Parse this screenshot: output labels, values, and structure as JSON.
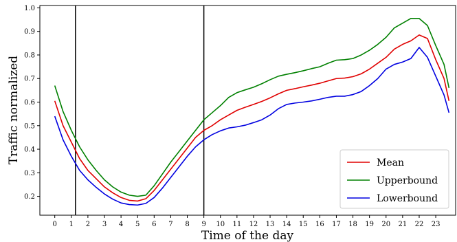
{
  "chart_data": {
    "type": "line",
    "xlabel": "Time of the day",
    "ylabel": "Traffic normalized",
    "xlim": [
      -0.9,
      24.2
    ],
    "ylim": [
      0.12,
      1.01
    ],
    "xticks": [
      0,
      1,
      2,
      3,
      4,
      5,
      6,
      7,
      8,
      9,
      10,
      11,
      12,
      13,
      14,
      15,
      16,
      17,
      18,
      19,
      20,
      21,
      22,
      23
    ],
    "yticks": [
      0.2,
      0.3,
      0.4,
      0.5,
      0.6,
      0.7,
      0.8,
      0.9,
      1.0
    ],
    "xtick_labels": [
      "0",
      "1",
      "2",
      "3",
      "4",
      "5",
      "6",
      "7",
      "8",
      "9",
      "10",
      "11",
      "12",
      "13",
      "14",
      "15",
      "16",
      "17",
      "18",
      "19",
      "20",
      "21",
      "22",
      "23"
    ],
    "ytick_labels": [
      "0.2",
      "0.3",
      "0.4",
      "0.5",
      "0.6",
      "0.7",
      "0.8",
      "0.9",
      "1.0"
    ],
    "vlines": [
      1.25,
      9.0
    ],
    "grid": false,
    "legend_position": "bottom-right",
    "series": [
      {
        "name": "Mean",
        "color": "#e00000",
        "points": [
          [
            0,
            0.605
          ],
          [
            0.5,
            0.5
          ],
          [
            1,
            0.43
          ],
          [
            1.5,
            0.36
          ],
          [
            2,
            0.31
          ],
          [
            2.5,
            0.275
          ],
          [
            3,
            0.24
          ],
          [
            3.5,
            0.215
          ],
          [
            4,
            0.195
          ],
          [
            4.5,
            0.183
          ],
          [
            5,
            0.18
          ],
          [
            5.5,
            0.19
          ],
          [
            6,
            0.225
          ],
          [
            6.5,
            0.27
          ],
          [
            7,
            0.315
          ],
          [
            7.5,
            0.36
          ],
          [
            8,
            0.405
          ],
          [
            8.5,
            0.45
          ],
          [
            9,
            0.48
          ],
          [
            9.5,
            0.5
          ],
          [
            10,
            0.525
          ],
          [
            10.5,
            0.545
          ],
          [
            11,
            0.565
          ],
          [
            11.5,
            0.578
          ],
          [
            12,
            0.59
          ],
          [
            12.5,
            0.603
          ],
          [
            13,
            0.618
          ],
          [
            13.5,
            0.635
          ],
          [
            14,
            0.65
          ],
          [
            14.5,
            0.657
          ],
          [
            15,
            0.665
          ],
          [
            15.5,
            0.672
          ],
          [
            16,
            0.68
          ],
          [
            16.5,
            0.69
          ],
          [
            17,
            0.7
          ],
          [
            17.5,
            0.702
          ],
          [
            18,
            0.708
          ],
          [
            18.5,
            0.72
          ],
          [
            19,
            0.74
          ],
          [
            19.5,
            0.765
          ],
          [
            20,
            0.79
          ],
          [
            20.5,
            0.825
          ],
          [
            21,
            0.845
          ],
          [
            21.5,
            0.86
          ],
          [
            22,
            0.885
          ],
          [
            22.5,
            0.87
          ],
          [
            23,
            0.78
          ],
          [
            23.5,
            0.7
          ],
          [
            23.8,
            0.605
          ]
        ]
      },
      {
        "name": "Upperbound",
        "color": "#008000",
        "points": [
          [
            0,
            0.67
          ],
          [
            0.5,
            0.56
          ],
          [
            1,
            0.48
          ],
          [
            1.5,
            0.41
          ],
          [
            2,
            0.355
          ],
          [
            2.5,
            0.31
          ],
          [
            3,
            0.27
          ],
          [
            3.5,
            0.24
          ],
          [
            4,
            0.218
          ],
          [
            4.5,
            0.205
          ],
          [
            5,
            0.2
          ],
          [
            5.5,
            0.205
          ],
          [
            6,
            0.245
          ],
          [
            6.5,
            0.295
          ],
          [
            7,
            0.345
          ],
          [
            7.5,
            0.39
          ],
          [
            8,
            0.435
          ],
          [
            8.5,
            0.48
          ],
          [
            9,
            0.525
          ],
          [
            9.5,
            0.555
          ],
          [
            10,
            0.585
          ],
          [
            10.5,
            0.62
          ],
          [
            11,
            0.64
          ],
          [
            11.5,
            0.652
          ],
          [
            12,
            0.663
          ],
          [
            12.5,
            0.678
          ],
          [
            13,
            0.695
          ],
          [
            13.5,
            0.71
          ],
          [
            14,
            0.718
          ],
          [
            14.5,
            0.725
          ],
          [
            15,
            0.733
          ],
          [
            15.5,
            0.742
          ],
          [
            16,
            0.75
          ],
          [
            16.5,
            0.765
          ],
          [
            17,
            0.778
          ],
          [
            17.5,
            0.78
          ],
          [
            18,
            0.785
          ],
          [
            18.5,
            0.8
          ],
          [
            19,
            0.82
          ],
          [
            19.5,
            0.845
          ],
          [
            20,
            0.875
          ],
          [
            20.5,
            0.915
          ],
          [
            21,
            0.935
          ],
          [
            21.5,
            0.955
          ],
          [
            22,
            0.955
          ],
          [
            22.5,
            0.925
          ],
          [
            23,
            0.84
          ],
          [
            23.5,
            0.76
          ],
          [
            23.8,
            0.66
          ]
        ]
      },
      {
        "name": "Lowerbound",
        "color": "#0000e0",
        "points": [
          [
            0,
            0.54
          ],
          [
            0.5,
            0.44
          ],
          [
            1,
            0.37
          ],
          [
            1.5,
            0.31
          ],
          [
            2,
            0.27
          ],
          [
            2.5,
            0.238
          ],
          [
            3,
            0.21
          ],
          [
            3.5,
            0.188
          ],
          [
            4,
            0.172
          ],
          [
            4.5,
            0.165
          ],
          [
            5,
            0.163
          ],
          [
            5.5,
            0.17
          ],
          [
            6,
            0.195
          ],
          [
            6.5,
            0.235
          ],
          [
            7,
            0.28
          ],
          [
            7.5,
            0.325
          ],
          [
            8,
            0.37
          ],
          [
            8.5,
            0.41
          ],
          [
            9,
            0.44
          ],
          [
            9.5,
            0.462
          ],
          [
            10,
            0.478
          ],
          [
            10.5,
            0.49
          ],
          [
            11,
            0.495
          ],
          [
            11.5,
            0.502
          ],
          [
            12,
            0.513
          ],
          [
            12.5,
            0.525
          ],
          [
            13,
            0.545
          ],
          [
            13.5,
            0.572
          ],
          [
            14,
            0.59
          ],
          [
            14.5,
            0.596
          ],
          [
            15,
            0.6
          ],
          [
            15.5,
            0.605
          ],
          [
            16,
            0.612
          ],
          [
            16.5,
            0.62
          ],
          [
            17,
            0.625
          ],
          [
            17.5,
            0.625
          ],
          [
            18,
            0.632
          ],
          [
            18.5,
            0.645
          ],
          [
            19,
            0.67
          ],
          [
            19.5,
            0.7
          ],
          [
            20,
            0.74
          ],
          [
            20.5,
            0.76
          ],
          [
            21,
            0.77
          ],
          [
            21.5,
            0.785
          ],
          [
            22,
            0.832
          ],
          [
            22.5,
            0.79
          ],
          [
            23,
            0.71
          ],
          [
            23.5,
            0.63
          ],
          [
            23.8,
            0.555
          ]
        ]
      }
    ]
  }
}
